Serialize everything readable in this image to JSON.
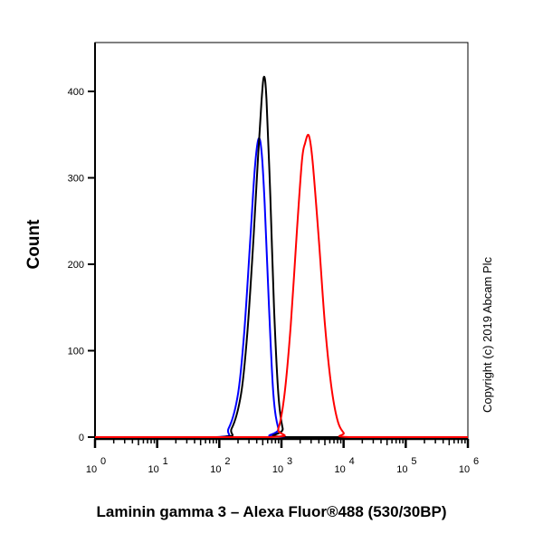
{
  "chart_data": {
    "type": "line",
    "title": "",
    "xlabel": "Laminin gamma 3 – Alexa Fluor®488 (530/30BP)",
    "ylabel": "Count",
    "xscale": "log",
    "xlim": [
      1,
      1000000
    ],
    "ylim": [
      0,
      440
    ],
    "x_ticks": [
      {
        "base": "10",
        "exp": "0"
      },
      {
        "base": "10",
        "exp": "1"
      },
      {
        "base": "10",
        "exp": "2"
      },
      {
        "base": "10",
        "exp": "3"
      },
      {
        "base": "10",
        "exp": "4"
      },
      {
        "base": "10",
        "exp": "5"
      },
      {
        "base": "10",
        "exp": "6"
      }
    ],
    "y_ticks": [
      "0",
      "100",
      "200",
      "300",
      "400"
    ],
    "grid": false,
    "annotation": "Copyright (c) 2019 Abcam Plc",
    "series": [
      {
        "color": "#0000ff",
        "points": [
          [
            1,
            0
          ],
          [
            89,
            0
          ],
          [
            141,
            10
          ],
          [
            200,
            50
          ],
          [
            251,
            120
          ],
          [
            316,
            230
          ],
          [
            372,
            310
          ],
          [
            427,
            345
          ],
          [
            479,
            330
          ],
          [
            537,
            270
          ],
          [
            631,
            150
          ],
          [
            741,
            50
          ],
          [
            891,
            10
          ],
          [
            1122,
            0
          ],
          [
            1000000,
            0
          ]
        ]
      },
      {
        "color": "#000000",
        "points": [
          [
            1,
            0
          ],
          [
            100,
            0
          ],
          [
            158,
            10
          ],
          [
            224,
            50
          ],
          [
            282,
            120
          ],
          [
            355,
            230
          ],
          [
            417,
            320
          ],
          [
            479,
            390
          ],
          [
            525,
            417
          ],
          [
            575,
            390
          ],
          [
            661,
            280
          ],
          [
            759,
            150
          ],
          [
            891,
            50
          ],
          [
            1047,
            10
          ],
          [
            1259,
            0
          ],
          [
            1000000,
            0
          ]
        ]
      },
      {
        "color": "#ff0000",
        "points": [
          [
            1,
            0
          ],
          [
            631,
            0
          ],
          [
            891,
            10
          ],
          [
            1122,
            50
          ],
          [
            1413,
            130
          ],
          [
            1778,
            240
          ],
          [
            2138,
            320
          ],
          [
            2399,
            340
          ],
          [
            2754,
            349
          ],
          [
            3162,
            320
          ],
          [
            3981,
            230
          ],
          [
            5012,
            130
          ],
          [
            6310,
            60
          ],
          [
            7943,
            20
          ],
          [
            10000,
            5
          ],
          [
            12589,
            0
          ],
          [
            1000000,
            0
          ]
        ]
      }
    ]
  }
}
